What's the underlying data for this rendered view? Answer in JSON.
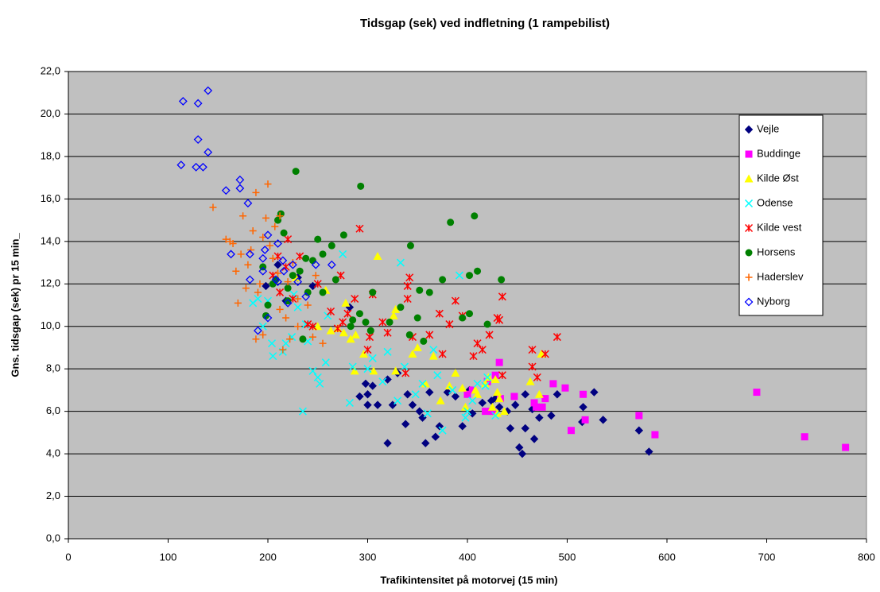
{
  "chart_data": {
    "type": "scatter",
    "title": "Tidsgap (sek) ved indfletning (1 rampebilist)",
    "x_label": "Trafikintensitet på motorvej (15 min)",
    "y_label": "Gns. tidsgap (sek) pr 15 min_",
    "xlim": [
      0,
      800
    ],
    "xticks": [
      0,
      100,
      200,
      300,
      400,
      500,
      600,
      700,
      800
    ],
    "ylim": [
      0,
      22
    ],
    "yticks": [
      {
        "value": 0,
        "label": "0,0"
      },
      {
        "value": 2,
        "label": "2,0"
      },
      {
        "value": 4,
        "label": "4,0"
      },
      {
        "value": 6,
        "label": "6,0"
      },
      {
        "value": 8,
        "label": "8,0"
      },
      {
        "value": 10,
        "label": "10,0"
      },
      {
        "value": 12,
        "label": "12,0"
      },
      {
        "value": 14,
        "label": "14,0"
      },
      {
        "value": 16,
        "label": "16,0"
      },
      {
        "value": 18,
        "label": "18,0"
      },
      {
        "value": 20,
        "label": "20,0"
      },
      {
        "value": 22,
        "label": "22,0"
      }
    ],
    "grid": true,
    "legend": "right",
    "background": "#c0c0c0",
    "series": [
      {
        "name": "Vejle",
        "color": "#000080",
        "marker": "diamond",
        "x": [
          582,
          572,
          536,
          527,
          516,
          515,
          490,
          484,
          472,
          467,
          465,
          458,
          458,
          455,
          452,
          448,
          443,
          440,
          432,
          428,
          424,
          415,
          405,
          402,
          395,
          388,
          380,
          372,
          368,
          362,
          358,
          355,
          352,
          345,
          340,
          338,
          330,
          325,
          320,
          320,
          310,
          300,
          298,
          292,
          282,
          245,
          230,
          218,
          210,
          198,
          300,
          305
        ],
        "values": [
          4.1,
          5.1,
          5.6,
          6.9,
          6.2,
          5.5,
          6.8,
          5.8,
          5.7,
          4.7,
          6.1,
          6.8,
          5.2,
          4.0,
          4.3,
          6.3,
          5.2,
          6.0,
          6.2,
          6.6,
          6.5,
          6.4,
          5.9,
          7.0,
          5.3,
          6.7,
          6.9,
          5.3,
          4.8,
          6.9,
          4.5,
          5.7,
          6.0,
          6.3,
          6.8,
          5.4,
          7.8,
          6.3,
          7.5,
          4.5,
          6.3,
          6.8,
          7.3,
          6.7,
          10.9,
          11.9,
          12.3,
          11.2,
          12.9,
          11.9,
          6.3,
          7.2
        ]
      },
      {
        "name": "Buddinge",
        "color": "#ff00ff",
        "marker": "square",
        "x": [
          779,
          738,
          690,
          588,
          572,
          518,
          516,
          504,
          498,
          486,
          478,
          475,
          467,
          447,
          433,
          432,
          428,
          425,
          420,
          418,
          400,
          405,
          469
        ],
        "values": [
          4.3,
          4.8,
          6.9,
          4.9,
          5.8,
          5.6,
          6.8,
          5.1,
          7.1,
          7.3,
          6.6,
          6.2,
          6.4,
          6.7,
          6.6,
          8.3,
          7.7,
          6.0,
          7.4,
          6.0,
          6.8,
          7.0,
          6.2
        ]
      },
      {
        "name": "Kilde Øst",
        "color": "#ffff00",
        "marker": "triangle",
        "x": [
          474,
          472,
          463,
          437,
          432,
          430,
          428,
          425,
          421,
          418,
          410,
          408,
          398,
          395,
          388,
          382,
          373,
          366,
          358,
          350,
          345,
          328,
          326,
          310,
          306,
          296,
          288,
          287,
          283,
          276,
          278,
          270,
          263,
          258,
          228,
          250,
          328,
          430
        ],
        "values": [
          8.7,
          6.8,
          7.4,
          6.0,
          6.6,
          5.9,
          7.5,
          6.2,
          7.6,
          7.3,
          6.8,
          7.0,
          6.2,
          7.1,
          7.8,
          7.2,
          6.5,
          8.6,
          7.3,
          9.0,
          8.7,
          7.9,
          10.5,
          13.3,
          7.9,
          8.7,
          9.6,
          7.9,
          9.4,
          9.7,
          11.1,
          9.9,
          9.8,
          11.7,
          12.3,
          10.0,
          10.8,
          6.9
        ]
      },
      {
        "name": "Odense",
        "color": "#00ffff",
        "marker": "cross",
        "x": [
          428,
          420,
          418,
          410,
          405,
          400,
          398,
          392,
          385,
          375,
          370,
          366,
          360,
          355,
          348,
          337,
          333,
          330,
          320,
          315,
          305,
          300,
          285,
          282,
          275,
          258,
          252,
          250,
          245,
          240,
          238,
          235,
          230,
          224,
          218,
          215,
          205,
          204,
          200,
          195,
          190,
          185,
          226,
          260
        ],
        "values": [
          5.8,
          7.6,
          7.2,
          7.3,
          6.5,
          6.0,
          5.7,
          12.4,
          7.0,
          5.1,
          7.7,
          8.9,
          5.9,
          7.3,
          6.8,
          8.1,
          13.0,
          6.5,
          8.8,
          7.4,
          8.5,
          8.0,
          8.1,
          6.4,
          13.4,
          8.3,
          7.3,
          7.6,
          7.9,
          9.3,
          10.1,
          6.0,
          10.9,
          9.5,
          9.2,
          8.8,
          8.6,
          9.2,
          11.2,
          10.0,
          11.3,
          11.1,
          11.5,
          10.5
        ]
      },
      {
        "name": "Kilde vest",
        "color": "#ff0000",
        "marker": "asterisk",
        "x": [
          490,
          478,
          470,
          465,
          465,
          435,
          435,
          432,
          430,
          422,
          415,
          410,
          406,
          395,
          388,
          382,
          375,
          372,
          362,
          345,
          342,
          340,
          340,
          338,
          320,
          315,
          305,
          302,
          300,
          292,
          287,
          280,
          275,
          273,
          270,
          263,
          250,
          245,
          240,
          232,
          225,
          220,
          218,
          212,
          210,
          205
        ],
        "values": [
          9.5,
          8.7,
          7.6,
          8.1,
          8.9,
          11.4,
          7.7,
          10.3,
          10.4,
          9.6,
          8.9,
          9.2,
          8.6,
          10.5,
          11.2,
          10.1,
          8.7,
          10.6,
          9.6,
          9.5,
          12.3,
          11.9,
          11.3,
          7.8,
          9.7,
          10.2,
          11.5,
          9.5,
          8.9,
          14.6,
          11.3,
          10.6,
          10.2,
          12.4,
          9.9,
          10.7,
          12.0,
          10.0,
          10.1,
          13.3,
          11.3,
          14.1,
          12.8,
          11.6,
          13.3,
          12.4
        ]
      },
      {
        "name": "Horsens",
        "color": "#008000",
        "marker": "circle",
        "x": [
          434,
          420,
          410,
          407,
          402,
          402,
          395,
          383,
          375,
          362,
          356,
          352,
          350,
          343,
          342,
          333,
          322,
          305,
          303,
          298,
          293,
          292,
          285,
          283,
          276,
          268,
          264,
          255,
          255,
          250,
          245,
          238,
          235,
          232,
          228,
          225,
          220,
          216,
          213,
          210,
          208,
          205,
          200,
          198,
          195,
          220,
          240
        ],
        "values": [
          12.2,
          10.1,
          12.6,
          15.2,
          12.4,
          10.6,
          10.4,
          14.9,
          12.2,
          11.6,
          9.3,
          11.7,
          10.4,
          13.8,
          9.6,
          10.9,
          10.2,
          11.6,
          9.8,
          10.2,
          16.6,
          10.6,
          10.3,
          10.0,
          14.3,
          12.2,
          13.8,
          11.6,
          13.4,
          14.1,
          13.1,
          13.2,
          9.4,
          12.6,
          17.3,
          12.4,
          11.2,
          14.4,
          15.3,
          15.0,
          12.2,
          12.0,
          11.0,
          10.5,
          12.8,
          11.8,
          11.6
        ]
      },
      {
        "name": "Haderslev",
        "color": "#ff6600",
        "marker": "plus",
        "x": [
          222,
          218,
          215,
          212,
          210,
          205,
          200,
          198,
          195,
          195,
          192,
          190,
          188,
          188,
          185,
          183,
          180,
          178,
          175,
          173,
          170,
          168,
          165,
          162,
          158,
          145,
          202,
          207,
          212,
          230,
          240,
          245,
          248,
          255,
          225,
          220,
          230
        ],
        "values": [
          9.4,
          10.4,
          8.9,
          10.8,
          12.5,
          13.2,
          16.7,
          15.1,
          14.2,
          9.6,
          12.0,
          11.6,
          16.3,
          9.4,
          14.5,
          13.6,
          12.9,
          11.8,
          15.2,
          13.4,
          11.1,
          12.6,
          13.9,
          14.0,
          14.1,
          15.6,
          13.8,
          14.7,
          15.2,
          10.0,
          11.0,
          9.5,
          12.4,
          9.2,
          13.0,
          12.1,
          11.3
        ]
      },
      {
        "name": "Nyborg",
        "color": "#0000ff",
        "marker": "open-diamond",
        "x": [
          140,
          130,
          115,
          130,
          140,
          113,
          128,
          135,
          172,
          172,
          158,
          180,
          200,
          210,
          163,
          182,
          197,
          195,
          215,
          225,
          248,
          264,
          182,
          208,
          216,
          230,
          195,
          220,
          238,
          190,
          200,
          210
        ],
        "values": [
          21.1,
          20.5,
          20.6,
          18.8,
          18.2,
          17.6,
          17.5,
          17.5,
          16.9,
          16.5,
          16.4,
          15.8,
          14.3,
          13.9,
          13.4,
          13.4,
          13.6,
          13.2,
          13.1,
          12.9,
          12.9,
          12.9,
          12.2,
          12.2,
          12.6,
          12.1,
          12.6,
          11.1,
          11.4,
          9.8,
          10.4,
          12.1
        ]
      }
    ]
  }
}
